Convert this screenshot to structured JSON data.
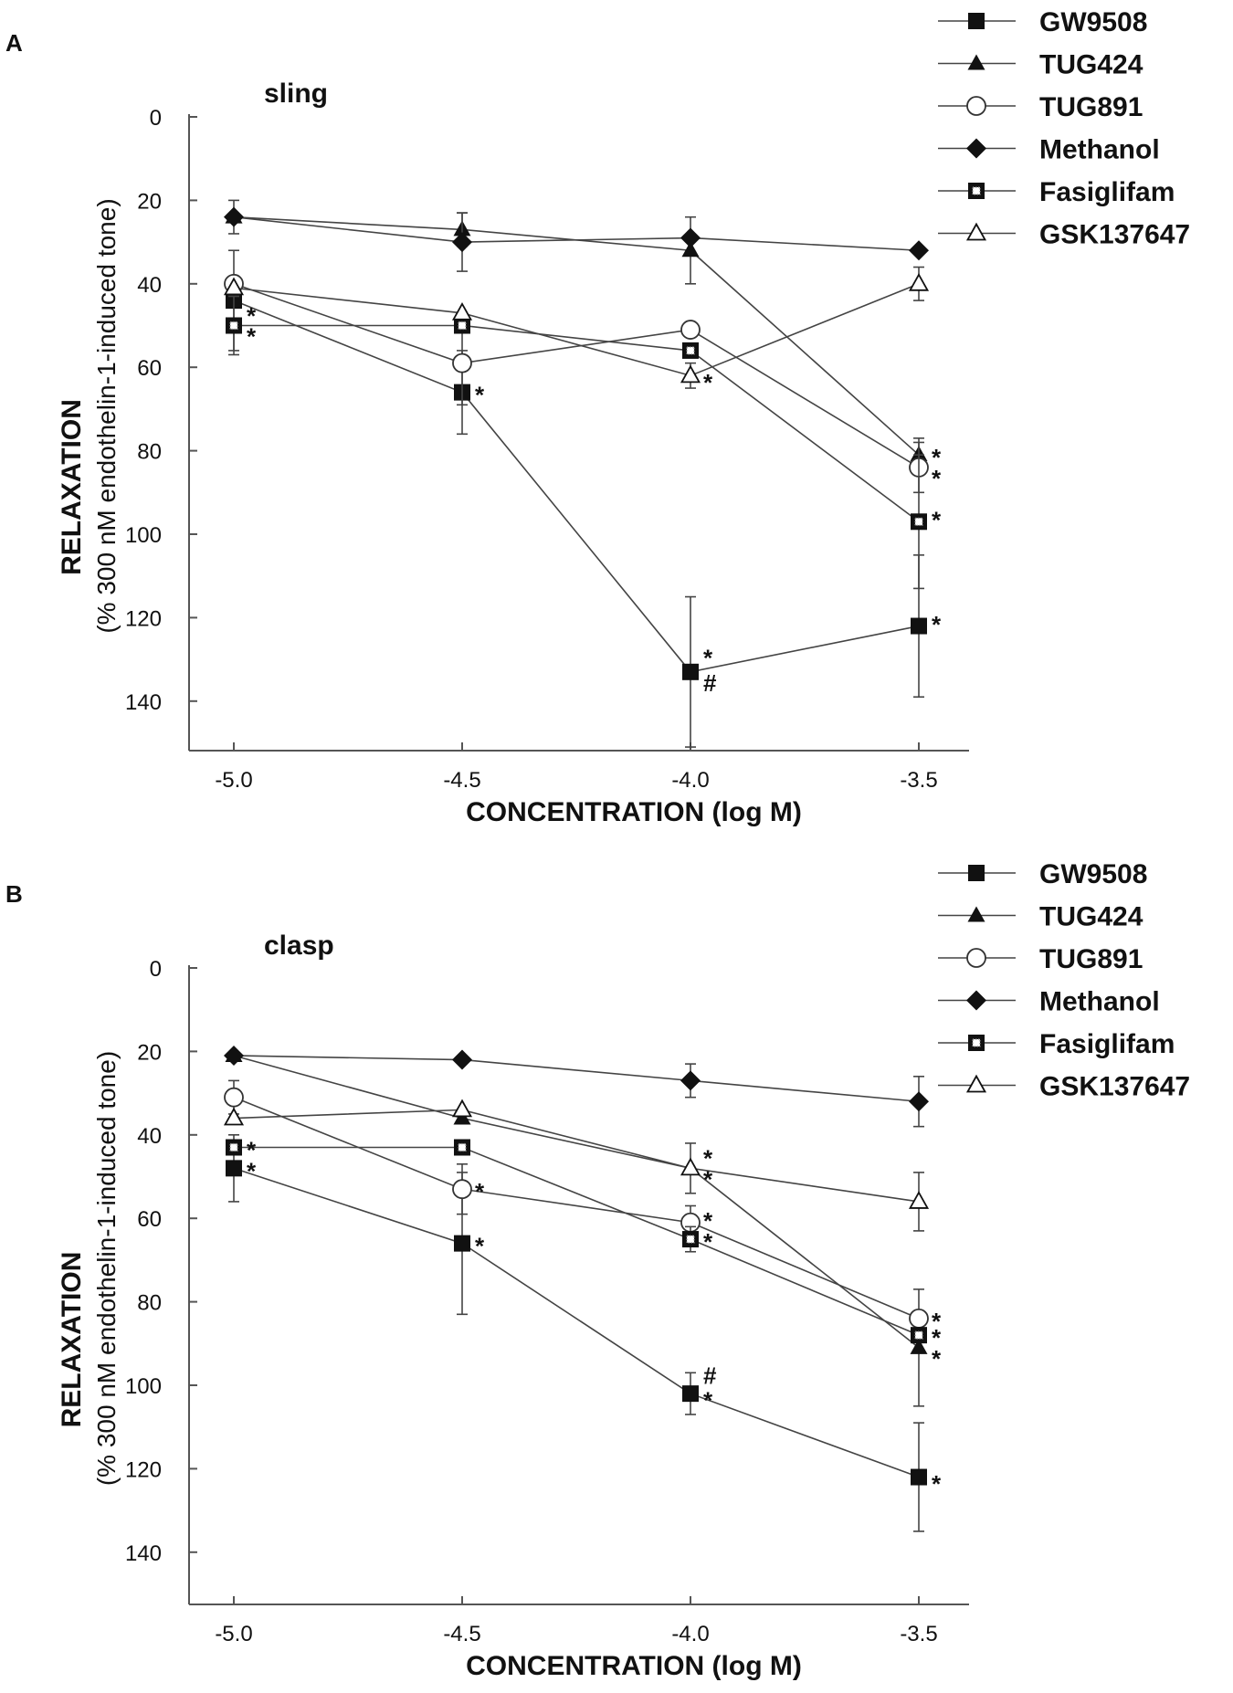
{
  "legend_labels": [
    "GW9508",
    "TUG424",
    "TUG891",
    "Methanol",
    "Fasiglifam",
    "GSK137647"
  ],
  "colors": {
    "line": "#444444",
    "marker": "#111111",
    "open": "#ffffff"
  },
  "chart_data": [
    {
      "panel": "A",
      "type": "line",
      "title": "sling",
      "xlabel": "CONCENTRATION (log M)",
      "ylabel": "RELAXATION",
      "ylabel_sub": "(% 300 nM endothelin-1-induced tone)",
      "x": [
        -5.0,
        -4.5,
        -4.0,
        -3.5
      ],
      "x_ticks": [
        "-5.0",
        "-4.5",
        "-4.0",
        "-3.5"
      ],
      "y_ticks": [
        "0",
        "20",
        "40",
        "60",
        "80",
        "100",
        "120",
        "140"
      ],
      "ylim": [
        0,
        155
      ],
      "y_inverted": true,
      "series": [
        {
          "name": "GW9508",
          "marker": "filled-square",
          "values": [
            44,
            66,
            133,
            122
          ],
          "errors": [
            12,
            10,
            18,
            17
          ]
        },
        {
          "name": "TUG424",
          "marker": "filled-triangle",
          "values": [
            24,
            27,
            32,
            81
          ],
          "errors": [
            0,
            4,
            8,
            4
          ]
        },
        {
          "name": "TUG891",
          "marker": "open-circle",
          "values": [
            40,
            59,
            51,
            84
          ],
          "errors": [
            0,
            10,
            0,
            6
          ]
        },
        {
          "name": "Methanol",
          "marker": "filled-diamond",
          "values": [
            24,
            30,
            29,
            32
          ],
          "errors": [
            4,
            7,
            0,
            0
          ]
        },
        {
          "name": "Fasiglifam",
          "marker": "dotted-square",
          "values": [
            50,
            50,
            56,
            97
          ],
          "errors": [
            7,
            0,
            0,
            16
          ]
        },
        {
          "name": "GSK137647",
          "marker": "open-triangle",
          "values": [
            41,
            47,
            62,
            40
          ],
          "errors": [
            0,
            0,
            3,
            4
          ]
        }
      ],
      "annotations": [
        {
          "x": -5.0,
          "y": 47,
          "text": "*"
        },
        {
          "x": -5.0,
          "y": 52,
          "text": "*"
        },
        {
          "x": -4.5,
          "y": 66,
          "text": "*"
        },
        {
          "x": -4.0,
          "y": 63,
          "text": "*"
        },
        {
          "x": -4.0,
          "y": 129,
          "text": "*"
        },
        {
          "x": -4.0,
          "y": 135,
          "text": "#"
        },
        {
          "x": -3.5,
          "y": 81,
          "text": "*"
        },
        {
          "x": -3.5,
          "y": 86,
          "text": "*"
        },
        {
          "x": -3.5,
          "y": 96,
          "text": "*"
        },
        {
          "x": -3.5,
          "y": 121,
          "text": "*"
        }
      ]
    },
    {
      "panel": "B",
      "type": "line",
      "title": "clasp",
      "xlabel": "CONCENTRATION (log M)",
      "ylabel": "RELAXATION",
      "ylabel_sub": "(% 300 nM endothelin-1-induced tone)",
      "x": [
        -5.0,
        -4.5,
        -4.0,
        -3.5
      ],
      "x_ticks": [
        "-5.0",
        "-4.5",
        "-4.0",
        "-3.5"
      ],
      "y_ticks": [
        "0",
        "20",
        "40",
        "60",
        "80",
        "100",
        "120",
        "140"
      ],
      "ylim": [
        0,
        155
      ],
      "y_inverted": true,
      "series": [
        {
          "name": "GW9508",
          "marker": "filled-square",
          "values": [
            48,
            66,
            102,
            122
          ],
          "errors": [
            8,
            17,
            5,
            13
          ]
        },
        {
          "name": "TUG424",
          "marker": "filled-triangle",
          "values": [
            21,
            36,
            48,
            91
          ],
          "errors": [
            0,
            0,
            6,
            14
          ]
        },
        {
          "name": "TUG891",
          "marker": "open-circle",
          "values": [
            31,
            53,
            61,
            84
          ],
          "errors": [
            4,
            6,
            4,
            0
          ]
        },
        {
          "name": "Methanol",
          "marker": "filled-diamond",
          "values": [
            21,
            22,
            27,
            32
          ],
          "errors": [
            0,
            0,
            4,
            6
          ]
        },
        {
          "name": "Fasiglifam",
          "marker": "dotted-square",
          "values": [
            43,
            43,
            65,
            88
          ],
          "errors": [
            0,
            0,
            3,
            0
          ]
        },
        {
          "name": "GSK137647",
          "marker": "open-triangle",
          "values": [
            36,
            34,
            48,
            56
          ],
          "errors": [
            0,
            0,
            0,
            7
          ]
        }
      ],
      "annotations": [
        {
          "x": -5.0,
          "y": 43,
          "text": "*"
        },
        {
          "x": -5.0,
          "y": 48,
          "text": "*"
        },
        {
          "x": -4.5,
          "y": 53,
          "text": "*"
        },
        {
          "x": -4.5,
          "y": 66,
          "text": "*"
        },
        {
          "x": -4.0,
          "y": 45,
          "text": "*"
        },
        {
          "x": -4.0,
          "y": 50,
          "text": "*"
        },
        {
          "x": -4.0,
          "y": 60,
          "text": "*"
        },
        {
          "x": -4.0,
          "y": 65,
          "text": "*"
        },
        {
          "x": -4.0,
          "y": 97,
          "text": "#"
        },
        {
          "x": -4.0,
          "y": 103,
          "text": "*"
        },
        {
          "x": -3.5,
          "y": 84,
          "text": "*"
        },
        {
          "x": -3.5,
          "y": 88,
          "text": "*"
        },
        {
          "x": -3.5,
          "y": 93,
          "text": "*"
        },
        {
          "x": -3.5,
          "y": 123,
          "text": "*"
        }
      ]
    }
  ]
}
